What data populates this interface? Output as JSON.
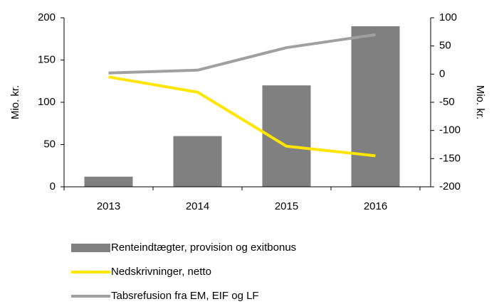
{
  "chart_data": {
    "type": "bar-line",
    "ylabel": "Mio. kr.",
    "y2label": "Mio. kr.",
    "categories": [
      "2013",
      "2014",
      "2015",
      "2016"
    ],
    "ylim": [
      0,
      200
    ],
    "yticks": [
      0,
      50,
      100,
      150,
      200
    ],
    "y2lim": [
      -200,
      100
    ],
    "y2ticks": [
      -200,
      -150,
      -100,
      -50,
      0,
      50,
      100
    ],
    "series": [
      {
        "name": "Renteindtægter, provision og exitbonus",
        "type": "bar",
        "color": "#808080",
        "values": [
          12,
          60,
          120,
          190
        ]
      },
      {
        "name": "Nedskrivninger, netto",
        "type": "line",
        "axis": "y2",
        "color": "#ffe600",
        "values": [
          -5,
          -32,
          -128,
          -145
        ]
      },
      {
        "name": "Tabsrefusion fra EM, EIF og LF",
        "type": "line",
        "axis": "y2",
        "color": "#a0a0a0",
        "values": [
          2,
          7,
          47,
          70
        ]
      }
    ]
  }
}
